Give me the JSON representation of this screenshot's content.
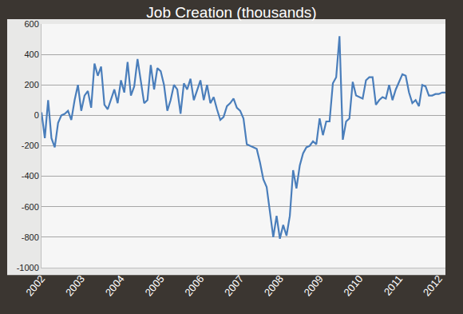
{
  "chart_data": {
    "type": "line",
    "title": "Job Creation (thousands)",
    "categories": [
      "2002",
      null,
      null,
      null,
      null,
      null,
      null,
      null,
      null,
      null,
      null,
      null,
      "2003",
      null,
      null,
      null,
      null,
      null,
      null,
      null,
      null,
      null,
      null,
      null,
      "2004",
      null,
      null,
      null,
      null,
      null,
      null,
      null,
      null,
      null,
      null,
      null,
      "2005",
      null,
      null,
      null,
      null,
      null,
      null,
      null,
      null,
      null,
      null,
      null,
      "2006",
      null,
      null,
      null,
      null,
      null,
      null,
      null,
      null,
      null,
      null,
      null,
      "2007",
      null,
      null,
      null,
      null,
      null,
      null,
      null,
      null,
      null,
      null,
      null,
      "2008",
      null,
      null,
      null,
      null,
      null,
      null,
      null,
      null,
      null,
      null,
      null,
      "2009",
      null,
      null,
      null,
      null,
      null,
      null,
      null,
      null,
      null,
      null,
      null,
      "2010",
      null,
      null,
      null,
      null,
      null,
      null,
      null,
      null,
      null,
      null,
      null,
      "2011",
      null,
      null,
      null,
      null,
      null,
      null,
      null,
      null,
      null,
      null,
      null,
      "2012",
      null,
      null
    ],
    "values": [
      20,
      -150,
      100,
      -150,
      -210,
      -50,
      0,
      10,
      30,
      -30,
      100,
      200,
      30,
      130,
      160,
      50,
      340,
      260,
      320,
      70,
      40,
      110,
      170,
      80,
      230,
      150,
      350,
      130,
      190,
      370,
      220,
      80,
      100,
      330,
      170,
      310,
      290,
      200,
      30,
      100,
      200,
      170,
      10,
      210,
      170,
      240,
      100,
      170,
      230,
      100,
      200,
      80,
      120,
      40,
      -30,
      -10,
      60,
      80,
      110,
      50,
      30,
      -20,
      -190,
      -200,
      -210,
      -220,
      -310,
      -420,
      -470,
      -650,
      -800,
      -660,
      -810,
      -720,
      -790,
      -660,
      -360,
      -480,
      -330,
      -250,
      -210,
      -200,
      -170,
      -190,
      -20,
      -130,
      -40,
      -40,
      210,
      250,
      520,
      -160,
      -40,
      -20,
      220,
      130,
      120,
      110,
      230,
      250,
      250,
      70,
      100,
      120,
      110,
      200,
      100,
      170,
      220,
      270,
      260,
      150,
      80,
      100,
      60,
      200,
      190,
      130,
      130,
      140,
      140,
      150,
      150
    ],
    "color": "#4a7ebb",
    "ylim": [
      -1000,
      600
    ],
    "yticks": [
      -1000,
      -800,
      -600,
      -400,
      -200,
      0,
      200,
      400,
      600
    ],
    "grid": true
  }
}
